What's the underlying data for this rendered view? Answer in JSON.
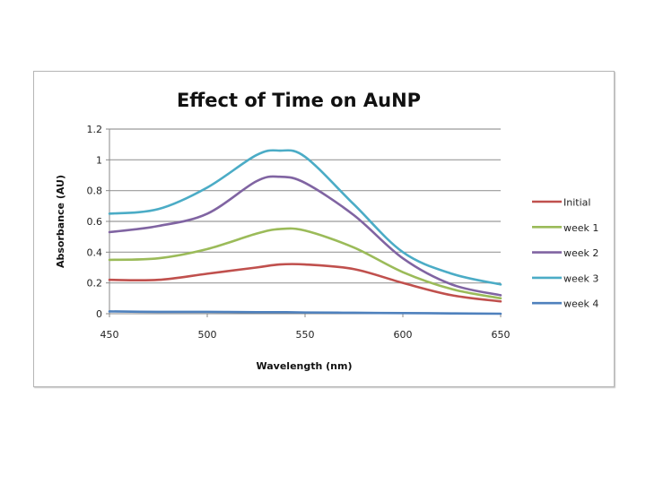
{
  "chart_data": {
    "type": "line",
    "title": "Effect of Time on AuNP",
    "xlabel": "Wavelength (nm)",
    "ylabel": "Absorbance (AU)",
    "xlim": [
      450,
      650
    ],
    "ylim": [
      0,
      1.2
    ],
    "x_ticks": [
      450,
      500,
      550,
      600,
      650
    ],
    "x_tick_labels": [
      "450",
      "500",
      "550",
      "600",
      "650"
    ],
    "y_ticks": [
      0,
      0.2,
      0.4,
      0.6,
      0.8,
      1.0,
      1.2
    ],
    "y_tick_labels": [
      "0",
      "0.2",
      "0.4",
      "0.6",
      "0.8",
      "1",
      "1.2"
    ],
    "grid": "horizontal",
    "legend_position": "right",
    "x": [
      450,
      475,
      500,
      525,
      537,
      550,
      575,
      600,
      625,
      650
    ],
    "series": [
      {
        "name": "Initial",
        "color": "#c0504d",
        "values": [
          0.22,
          0.22,
          0.26,
          0.3,
          0.32,
          0.32,
          0.29,
          0.2,
          0.12,
          0.08
        ]
      },
      {
        "name": "week 1",
        "color": "#9bbb59",
        "values": [
          0.35,
          0.36,
          0.42,
          0.52,
          0.55,
          0.54,
          0.43,
          0.27,
          0.16,
          0.1
        ]
      },
      {
        "name": "week 2",
        "color": "#8064a2",
        "values": [
          0.53,
          0.57,
          0.65,
          0.86,
          0.89,
          0.85,
          0.64,
          0.36,
          0.19,
          0.12
        ]
      },
      {
        "name": "week 3",
        "color": "#4bacc6",
        "values": [
          0.65,
          0.68,
          0.82,
          1.03,
          1.06,
          1.02,
          0.71,
          0.4,
          0.26,
          0.19
        ]
      },
      {
        "name": "week 4",
        "color": "#4f81bd",
        "values": [
          0.015,
          0.012,
          0.012,
          0.01,
          0.01,
          0.008,
          0.006,
          0.004,
          0.002,
          0.0
        ]
      }
    ]
  }
}
